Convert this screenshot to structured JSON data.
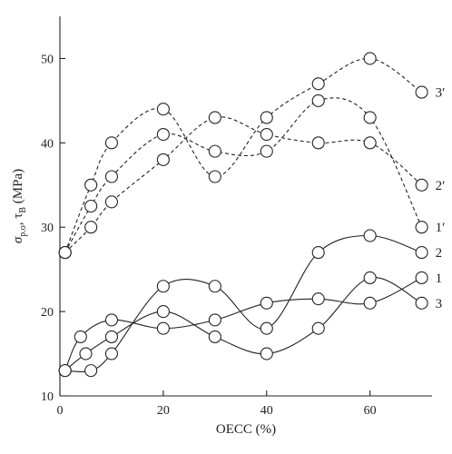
{
  "chart_data": {
    "type": "line",
    "xlabel": "OECC (%)",
    "ylabel_main": "σ",
    "ylabel_sub1": "p.o",
    "ylabel_mid": ", τ",
    "ylabel_sub2": "B",
    "ylabel_unit": " (MPa)",
    "xlim": [
      0,
      72
    ],
    "ylim": [
      10,
      55
    ],
    "x_ticks": [
      0,
      20,
      40,
      60
    ],
    "y_ticks": [
      10,
      20,
      30,
      40,
      50
    ],
    "grid": false,
    "legend": "none",
    "series": [
      {
        "name": "3′",
        "style": "dashed",
        "x": [
          1,
          6,
          10,
          20,
          30,
          40,
          50,
          60,
          70
        ],
        "y": [
          27,
          35,
          40,
          44,
          36,
          43,
          47,
          50,
          46
        ]
      },
      {
        "name": "2′",
        "style": "dashed",
        "x": [
          1,
          6,
          10,
          20,
          30,
          40,
          50,
          60,
          70
        ],
        "y": [
          27,
          30,
          33,
          38,
          43,
          41,
          40,
          40,
          35
        ]
      },
      {
        "name": "1′",
        "style": "dashed",
        "x": [
          1,
          6,
          10,
          20,
          30,
          40,
          50,
          60,
          70
        ],
        "y": [
          27,
          32.5,
          36,
          41,
          39,
          39,
          45,
          43,
          30
        ]
      },
      {
        "name": "1",
        "style": "solid",
        "x": [
          1,
          4,
          10,
          20,
          30,
          40,
          50,
          60,
          70
        ],
        "y": [
          13,
          17,
          19,
          18,
          19,
          21,
          21.5,
          21,
          24
        ]
      },
      {
        "name": "3",
        "style": "solid",
        "x": [
          1,
          5,
          10,
          20,
          30,
          40,
          50,
          60,
          70
        ],
        "y": [
          13,
          15,
          17,
          20,
          17,
          15,
          18,
          24,
          21
        ]
      },
      {
        "name": "2",
        "style": "solid",
        "x": [
          1,
          6,
          10,
          20,
          30,
          40,
          50,
          60,
          70
        ],
        "y": [
          13,
          13,
          15,
          23,
          23,
          18,
          27,
          29,
          27
        ]
      }
    ]
  }
}
